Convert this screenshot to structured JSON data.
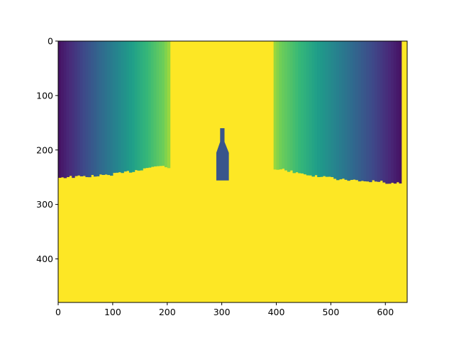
{
  "chart_data": {
    "type": "heatmap",
    "title": "",
    "xlabel": "",
    "ylabel": "",
    "colormap": "viridis",
    "image_width": 640,
    "image_height": 480,
    "xlim": [
      0,
      640
    ],
    "ylim": [
      480,
      0
    ],
    "y_inverted": true,
    "grid": false,
    "xticks": [
      0,
      100,
      200,
      300,
      400,
      500,
      600
    ],
    "yticks": [
      0,
      100,
      200,
      300,
      400
    ],
    "background_value": 1.0,
    "left_gradient": {
      "x_start": 0,
      "x_end": 205,
      "value_start": 0.05,
      "value_end": 0.93,
      "bottom_edge_y": [
        {
          "x": 0,
          "y": 250
        },
        {
          "x": 40,
          "y": 249
        },
        {
          "x": 80,
          "y": 247
        },
        {
          "x": 120,
          "y": 242
        },
        {
          "x": 150,
          "y": 236
        },
        {
          "x": 175,
          "y": 230
        },
        {
          "x": 205,
          "y": 231
        }
      ]
    },
    "right_gradient": {
      "x_start": 395,
      "x_end": 630,
      "value_start": 0.93,
      "value_end": 0.05,
      "bottom_edge_y": [
        {
          "x": 395,
          "y": 233
        },
        {
          "x": 430,
          "y": 240
        },
        {
          "x": 470,
          "y": 248
        },
        {
          "x": 520,
          "y": 254
        },
        {
          "x": 570,
          "y": 257
        },
        {
          "x": 630,
          "y": 262
        }
      ]
    },
    "right_edge_strip": {
      "x_start": 630,
      "x_end": 640,
      "value": 1.0
    },
    "object": {
      "label": "bottle",
      "value": 0.3,
      "x_center": 301,
      "x_range": [
        290,
        313
      ],
      "y_range": [
        160,
        256
      ]
    }
  }
}
